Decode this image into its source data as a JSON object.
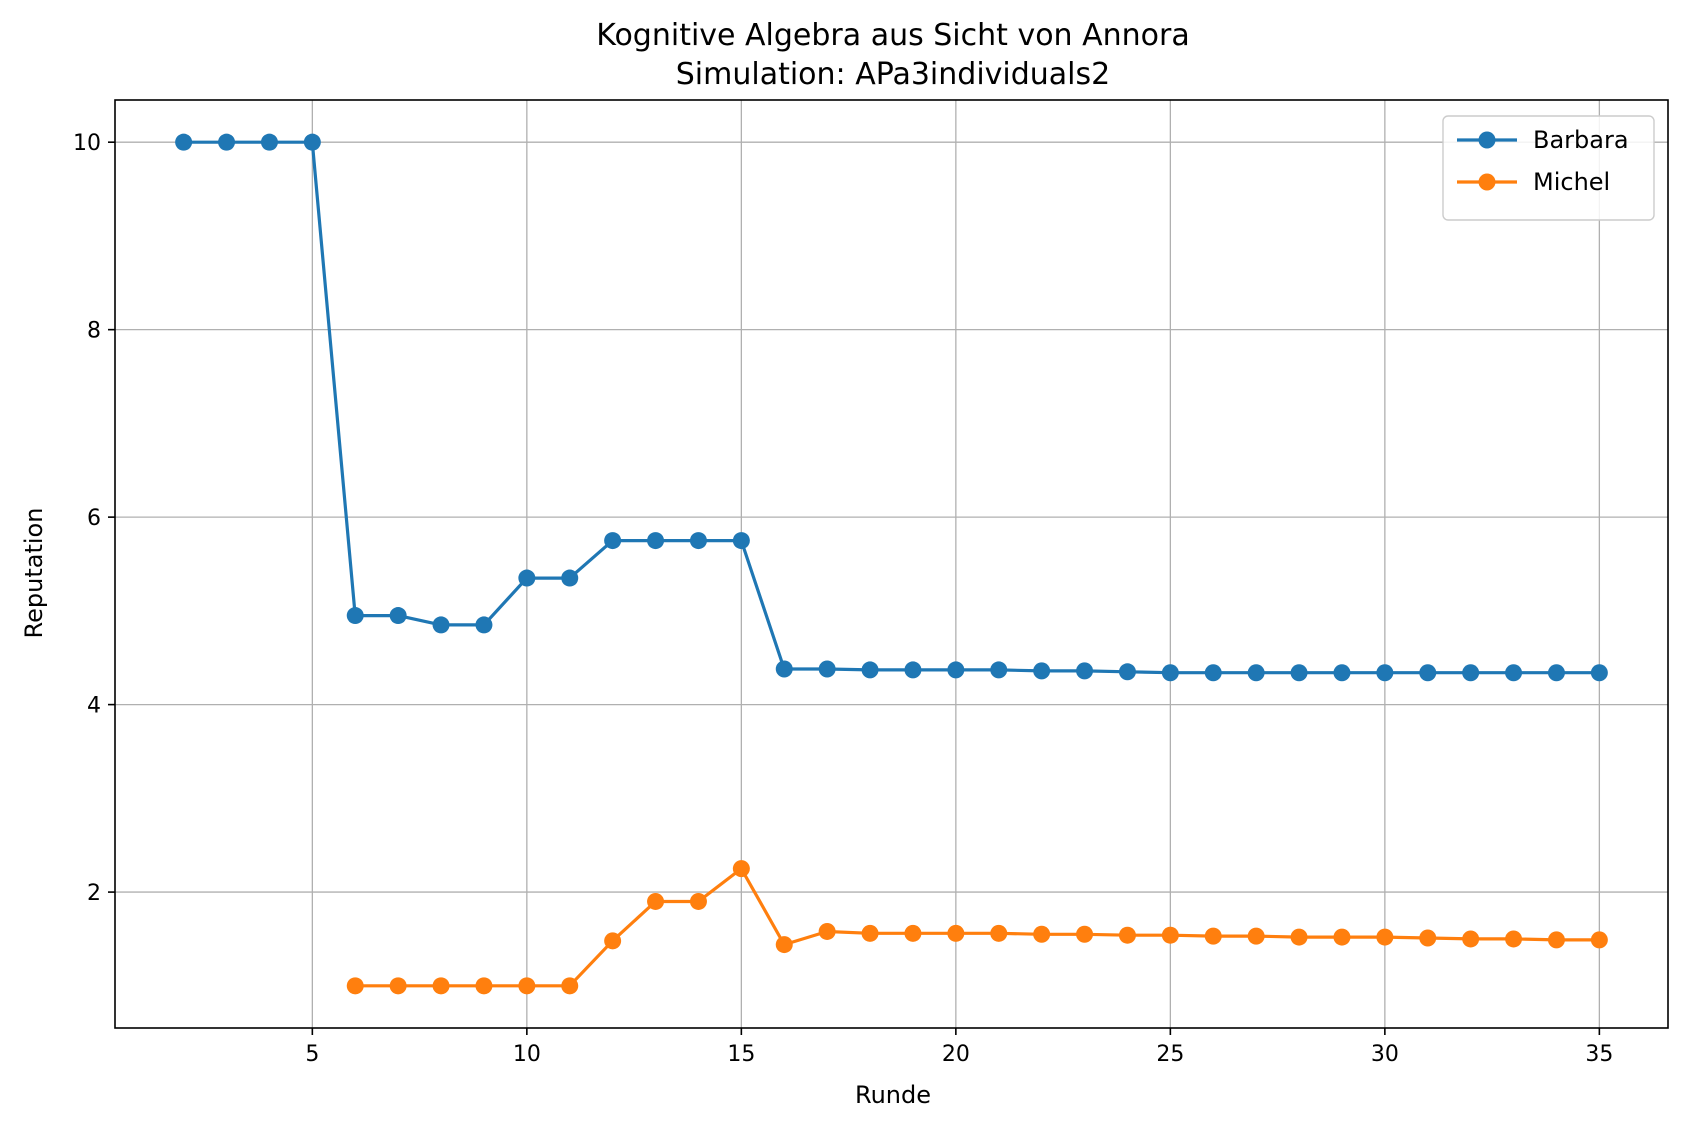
{
  "chart_data": {
    "type": "line",
    "title": "Kognitive Algebra aus Sicht von Annora",
    "subtitle": "Simulation: APa3individuals2",
    "xlabel": "Runde",
    "ylabel": "Reputation",
    "xlim": [
      0.4,
      36.6
    ],
    "ylim": [
      0.55,
      10.45
    ],
    "xticks": [
      5,
      10,
      15,
      20,
      25,
      30,
      35
    ],
    "yticks": [
      2,
      4,
      6,
      8,
      10
    ],
    "grid": true,
    "legend_position": "top-right",
    "series": [
      {
        "name": "Barbara",
        "color": "#1f77b4",
        "x": [
          2,
          3,
          4,
          5,
          6,
          7,
          8,
          9,
          10,
          11,
          12,
          13,
          14,
          15,
          16,
          17,
          18,
          19,
          20,
          21,
          22,
          23,
          24,
          25,
          26,
          27,
          28,
          29,
          30,
          31,
          32,
          33,
          34,
          35
        ],
        "y": [
          10,
          10,
          10,
          10,
          4.95,
          4.95,
          4.85,
          4.85,
          5.35,
          5.35,
          5.75,
          5.75,
          5.75,
          5.75,
          4.38,
          4.38,
          4.37,
          4.37,
          4.37,
          4.37,
          4.36,
          4.36,
          4.35,
          4.34,
          4.34,
          4.34,
          4.34,
          4.34,
          4.34,
          4.34,
          4.34,
          4.34,
          4.34,
          4.34
        ]
      },
      {
        "name": "Michel",
        "color": "#ff7f0e",
        "x": [
          6,
          7,
          8,
          9,
          10,
          11,
          12,
          13,
          14,
          15,
          16,
          17,
          18,
          19,
          20,
          21,
          22,
          23,
          24,
          25,
          26,
          27,
          28,
          29,
          30,
          31,
          32,
          33,
          34,
          35
        ],
        "y": [
          1.0,
          1.0,
          1.0,
          1.0,
          1.0,
          1.0,
          1.48,
          1.9,
          1.9,
          2.25,
          1.44,
          1.58,
          1.56,
          1.56,
          1.56,
          1.56,
          1.55,
          1.55,
          1.54,
          1.54,
          1.53,
          1.53,
          1.52,
          1.52,
          1.52,
          1.51,
          1.5,
          1.5,
          1.49,
          1.49
        ]
      }
    ]
  }
}
